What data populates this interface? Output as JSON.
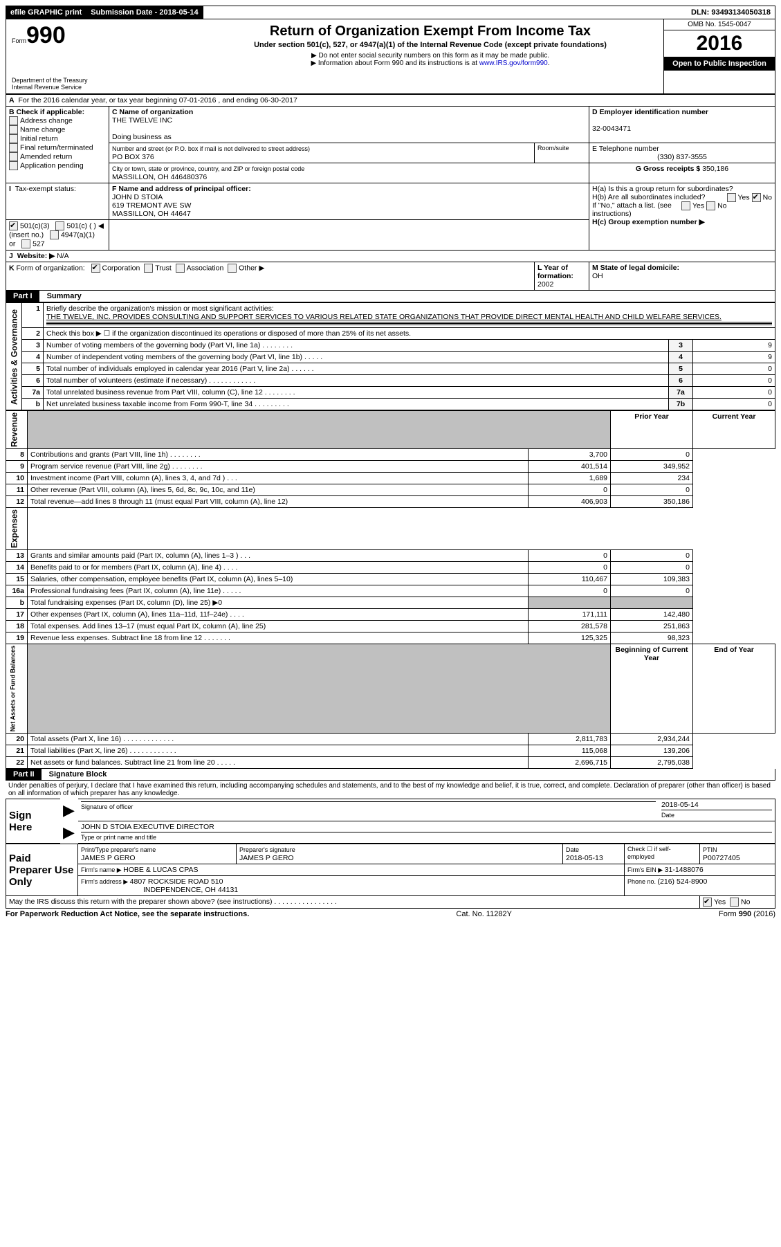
{
  "top": {
    "efile": "efile GRAPHIC print",
    "submission_label": "Submission Date - ",
    "submission_date": "2018-05-14",
    "dln_label": "DLN: ",
    "dln": "93493134050318"
  },
  "header": {
    "form_word": "Form",
    "form_num": "990",
    "dept": "Department of the Treasury",
    "irs": "Internal Revenue Service",
    "title": "Return of Organization Exempt From Income Tax",
    "subtitle": "Under section 501(c), 527, or 4947(a)(1) of the Internal Revenue Code (except private foundations)",
    "note1": "▶ Do not enter social security numbers on this form as it may be made public.",
    "note2": "▶ Information about Form 990 and its instructions is at ",
    "link": "www.IRS.gov/form990",
    "omb": "OMB No. 1545-0047",
    "year": "2016",
    "open": "Open to Public Inspection"
  },
  "A": {
    "line": "For the 2016 calendar year, or tax year beginning 07-01-2016   , and ending 06-30-2017"
  },
  "B": {
    "label": "B Check if applicable:",
    "items": [
      "Address change",
      "Name change",
      "Initial return",
      "Final return/terminated",
      "Amended return",
      "Application pending"
    ]
  },
  "C": {
    "name_label": "C Name of organization",
    "name": "THE TWELVE INC",
    "dba_label": "Doing business as",
    "street_label": "Number and street (or P.O. box if mail is not delivered to street address)",
    "room_label": "Room/suite",
    "street": "PO BOX 376",
    "city_label": "City or town, state or province, country, and ZIP or foreign postal code",
    "city": "MASSILLON, OH  446480376"
  },
  "D": {
    "label": "D Employer identification number",
    "value": "32-0043471"
  },
  "E": {
    "label": "E Telephone number",
    "value": "(330) 837-3555"
  },
  "G": {
    "label": "G Gross receipts $ ",
    "value": "350,186"
  },
  "F": {
    "label": "F Name and address of principal officer:",
    "name": "JOHN D STOIA",
    "addr1": "619 TREMONT AVE SW",
    "addr2": "MASSILLON, OH  44647"
  },
  "H": {
    "a": "H(a)  Is this a group return for subordinates?",
    "b": "H(b)  Are all subordinates included?",
    "b_note": "If \"No,\" attach a list. (see instructions)",
    "c": "H(c)  Group exemption number ▶",
    "yes": "Yes",
    "no": "No"
  },
  "I": {
    "label": "Tax-exempt status:",
    "opts": [
      "501(c)(3)",
      "501(c) (  ) ◀ (insert no.)",
      "4947(a)(1) or",
      "527"
    ]
  },
  "J": {
    "label": "Website: ▶",
    "value": "N/A"
  },
  "K": {
    "label": "Form of organization:",
    "opts": [
      "Corporation",
      "Trust",
      "Association",
      "Other ▶"
    ]
  },
  "L": {
    "label": "L Year of formation: ",
    "value": "2002"
  },
  "M": {
    "label": "M State of legal domicile:",
    "value": "OH"
  },
  "part1": {
    "label": "Part I",
    "title": "Summary",
    "q1": "Briefly describe the organization's mission or most significant activities:",
    "mission": "THE TWELVE, INC. PROVIDES CONSULTING AND SUPPORT SERVICES TO VARIOUS RELATED STATE ORGANIZATIONS THAT PROVIDE DIRECT MENTAL HEALTH AND CHILD WELFARE SERVICES.",
    "q2": "Check this box ▶ ☐  if the organization discontinued its operations or disposed of more than 25% of its net assets.",
    "rows": [
      {
        "n": "3",
        "t": "Number of voting members of the governing body (Part VI, line 1a)   .    .    .    .    .    .    .    .",
        "c": "3",
        "v": "9"
      },
      {
        "n": "4",
        "t": "Number of independent voting members of the governing body (Part VI, line 1b)   .    .    .    .    .",
        "c": "4",
        "v": "9"
      },
      {
        "n": "5",
        "t": "Total number of individuals employed in calendar year 2016 (Part V, line 2a)   .    .    .    .    .    .",
        "c": "5",
        "v": "0"
      },
      {
        "n": "6",
        "t": "Total number of volunteers (estimate if necessary)   .    .    .    .    .    .    .    .    .    .    .    .",
        "c": "6",
        "v": "0"
      },
      {
        "n": "7a",
        "t": "Total unrelated business revenue from Part VIII, column (C), line 12   .    .    .    .    .    .    .    .",
        "c": "7a",
        "v": "0"
      },
      {
        "n": "b",
        "t": "Net unrelated business taxable income from Form 990-T, line 34   .    .    .    .    .    .    .    .    .",
        "c": "7b",
        "v": "0"
      }
    ],
    "col_prior": "Prior Year",
    "col_current": "Current Year",
    "rev": [
      {
        "n": "8",
        "t": "Contributions and grants (Part VIII, line 1h)   .    .    .    .    .    .    .    .",
        "p": "3,700",
        "c": "0"
      },
      {
        "n": "9",
        "t": "Program service revenue (Part VIII, line 2g)   .    .    .    .    .    .    .    .",
        "p": "401,514",
        "c": "349,952"
      },
      {
        "n": "10",
        "t": "Investment income (Part VIII, column (A), lines 3, 4, and 7d )   .    .    .",
        "p": "1,689",
        "c": "234"
      },
      {
        "n": "11",
        "t": "Other revenue (Part VIII, column (A), lines 5, 6d, 8c, 9c, 10c, and 11e)",
        "p": "0",
        "c": "0"
      },
      {
        "n": "12",
        "t": "Total revenue—add lines 8 through 11 (must equal Part VIII, column (A), line 12)",
        "p": "406,903",
        "c": "350,186"
      }
    ],
    "exp": [
      {
        "n": "13",
        "t": "Grants and similar amounts paid (Part IX, column (A), lines 1–3 )   .    .    .",
        "p": "0",
        "c": "0"
      },
      {
        "n": "14",
        "t": "Benefits paid to or for members (Part IX, column (A), line 4)   .    .    .    .",
        "p": "0",
        "c": "0"
      },
      {
        "n": "15",
        "t": "Salaries, other compensation, employee benefits (Part IX, column (A), lines 5–10)",
        "p": "110,467",
        "c": "109,383"
      },
      {
        "n": "16a",
        "t": "Professional fundraising fees (Part IX, column (A), line 11e)   .    .    .    .    .",
        "p": "0",
        "c": "0"
      },
      {
        "n": "b",
        "t": "Total fundraising expenses (Part IX, column (D), line 25) ▶0",
        "p": "",
        "c": "",
        "shade": true
      },
      {
        "n": "17",
        "t": "Other expenses (Part IX, column (A), lines 11a–11d, 11f–24e)   .    .    .    .",
        "p": "171,111",
        "c": "142,480"
      },
      {
        "n": "18",
        "t": "Total expenses. Add lines 13–17 (must equal Part IX, column (A), line 25)",
        "p": "281,578",
        "c": "251,863"
      },
      {
        "n": "19",
        "t": "Revenue less expenses. Subtract line 18 from line 12 .    .    .    .    .    .    .",
        "p": "125,325",
        "c": "98,323"
      }
    ],
    "col_begin": "Beginning of Current Year",
    "col_end": "End of Year",
    "net": [
      {
        "n": "20",
        "t": "Total assets (Part X, line 16)   .    .    .    .    .    .    .    .    .    .    .    .    .",
        "p": "2,811,783",
        "c": "2,934,244"
      },
      {
        "n": "21",
        "t": "Total liabilities (Part X, line 26)   .    .    .    .    .    .    .    .    .    .    .    .",
        "p": "115,068",
        "c": "139,206"
      },
      {
        "n": "22",
        "t": "Net assets or fund balances. Subtract line 21 from line 20   .    .    .    .    .",
        "p": "2,696,715",
        "c": "2,795,038"
      }
    ],
    "side_ag": "Activities & Governance",
    "side_rev": "Revenue",
    "side_exp": "Expenses",
    "side_net": "Net Assets or Fund Balances"
  },
  "part2": {
    "label": "Part II",
    "title": "Signature Block",
    "decl": "Under penalties of perjury, I declare that I have examined this return, including accompanying schedules and statements, and to the best of my knowledge and belief, it is true, correct, and complete. Declaration of preparer (other than officer) is based on all information of which preparer has any knowledge.",
    "sign_here": "Sign Here",
    "sig_officer": "Signature of officer",
    "sig_date": "2018-05-14",
    "date_label": "Date",
    "officer_name": "JOHN D STOIA EXECUTIVE DIRECTOR",
    "type_name": "Type or print name and title",
    "paid": "Paid Preparer Use Only",
    "prep_name_label": "Print/Type preparer's name",
    "prep_name": "JAMES P GERO",
    "prep_sig_label": "Preparer's signature",
    "prep_sig": "JAMES P GERO",
    "prep_date_label": "Date",
    "prep_date": "2018-05-13",
    "check_label": "Check ☐ if self-employed",
    "ptin_label": "PTIN",
    "ptin": "P00727405",
    "firm_name_label": "Firm's name    ▶ ",
    "firm_name": "HOBE & LUCAS CPAS",
    "firm_ein_label": "Firm's EIN ▶ ",
    "firm_ein": "31-1488076",
    "firm_addr_label": "Firm's address ▶ ",
    "firm_addr1": "4807 ROCKSIDE ROAD 510",
    "firm_addr2": "INDEPENDENCE, OH  44131",
    "phone_label": "Phone no. ",
    "phone": "(216) 524-8900",
    "discuss": "May the IRS discuss this return with the preparer shown above? (see instructions)   .    .    .    .    .    .    .    .    .    .    .    .    .    .    .    .",
    "yes": "Yes",
    "no": "No"
  },
  "footer": {
    "left": "For Paperwork Reduction Act Notice, see the separate instructions.",
    "mid": "Cat. No. 11282Y",
    "right": "Form 990 (2016)"
  }
}
